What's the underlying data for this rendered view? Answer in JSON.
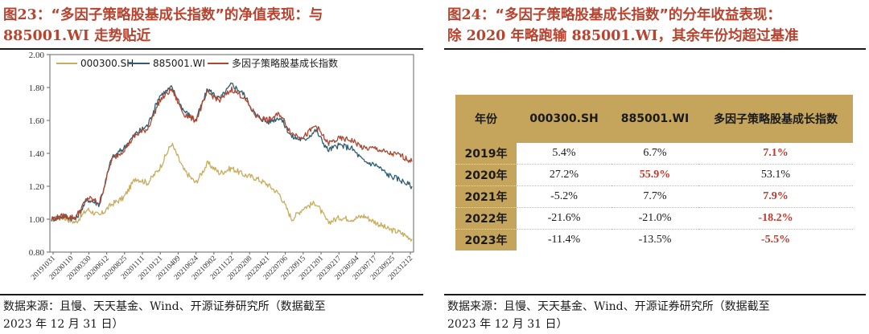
{
  "left": {
    "title_prefix": "图",
    "title_number": "23",
    "title_text": "：“多因子策略股基成长指数”的净值表现：与",
    "title_line2_code": "885001.WI",
    "title_line2_text": " 走势贴近",
    "source_line1": "数据来源：且慢、天天基金、Wind、开源证券研究所（数据截至",
    "source_line2": "2023 年 12 月 31 日）"
  },
  "right": {
    "title_prefix": "图",
    "title_number": "24",
    "title_text": "：“多因子策略股基成长指数”的分年收益表现：",
    "title_line2_pre": "除 ",
    "title_line2_year": "2020",
    "title_line2_mid": " 年略跑输 ",
    "title_line2_code": "885001.WI",
    "title_line2_post": "，其余年份均超过基准",
    "table": {
      "headers": [
        "年份",
        "000300.SH",
        "885001.WI",
        "多因子策略股基成长指数"
      ],
      "rows": [
        {
          "year": "2019年",
          "a": "5.4%",
          "b": "6.7%",
          "c": "7.1%",
          "hl": "c"
        },
        {
          "year": "2020年",
          "a": "27.2%",
          "b": "55.9%",
          "c": "53.1%",
          "hl": "b"
        },
        {
          "year": "2021年",
          "a": "-5.2%",
          "b": "7.7%",
          "c": "7.9%",
          "hl": "c"
        },
        {
          "year": "2022年",
          "a": "-21.6%",
          "b": "-21.0%",
          "c": "-18.2%",
          "hl": "c"
        },
        {
          "year": "2023年",
          "a": "-11.4%",
          "b": "-13.5%",
          "c": "-5.5%",
          "hl": "c"
        }
      ],
      "highlight_color": "#c0392b",
      "header_bg": "#c4a55b"
    },
    "source_line1": "数据来源：且慢、天天基金、Wind、开源证券研究所（数据截至",
    "source_line2": "2023 年 12 月 31 日）"
  },
  "colors": {
    "title": "#b8432e",
    "series_000300": "#c9ad5e",
    "series_885001": "#2f5d73",
    "series_multifactor": "#b0462f"
  },
  "chart_data": {
    "type": "line",
    "title": "",
    "xlabel": "",
    "ylabel": "",
    "ylim": [
      0.8,
      2.0
    ],
    "yticks": [
      "0.80",
      "1.00",
      "1.20",
      "1.40",
      "1.60",
      "1.80",
      "2.00"
    ],
    "xticks": [
      "20191031",
      "20200110",
      "20200330",
      "20200612",
      "20200825",
      "20201111",
      "20210121",
      "20210409",
      "20210624",
      "20210902",
      "20211122",
      "20220208",
      "20220421",
      "20220706",
      "20220915",
      "20221201",
      "20230217",
      "20230504",
      "20230717",
      "20230925",
      "20231212"
    ],
    "legend_position": "top",
    "series": [
      {
        "name": "000300.SH",
        "values": [
          1.0,
          1.01,
          0.98,
          1.06,
          1.02,
          1.09,
          1.13,
          1.25,
          1.22,
          1.31,
          1.46,
          1.3,
          1.22,
          1.34,
          1.28,
          1.31,
          1.27,
          1.25,
          1.21,
          1.15,
          1.0,
          1.07,
          1.1,
          0.98,
          1.01,
          1.0,
          1.02,
          0.98,
          0.94,
          0.92,
          0.88
        ]
      },
      {
        "name": "885001.WI",
        "values": [
          1.0,
          1.02,
          1.0,
          1.12,
          1.09,
          1.37,
          1.43,
          1.52,
          1.57,
          1.75,
          1.8,
          1.66,
          1.6,
          1.79,
          1.73,
          1.82,
          1.76,
          1.63,
          1.59,
          1.62,
          1.5,
          1.48,
          1.54,
          1.42,
          1.45,
          1.43,
          1.35,
          1.33,
          1.27,
          1.24,
          1.2
        ]
      },
      {
        "name": "多因子策略股基成长指数",
        "values": [
          1.0,
          1.02,
          1.01,
          1.13,
          1.1,
          1.36,
          1.42,
          1.51,
          1.55,
          1.72,
          1.79,
          1.64,
          1.6,
          1.77,
          1.72,
          1.79,
          1.74,
          1.63,
          1.6,
          1.64,
          1.52,
          1.5,
          1.57,
          1.46,
          1.49,
          1.48,
          1.43,
          1.43,
          1.4,
          1.39,
          1.35
        ]
      }
    ]
  }
}
